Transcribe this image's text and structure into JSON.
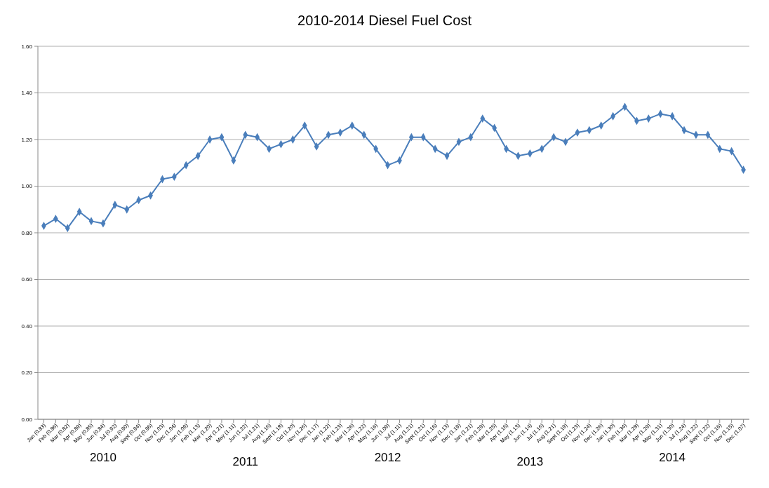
{
  "chart_data": {
    "type": "line",
    "title": "2010-2014 Diesel Fuel Cost",
    "categories": [
      "Jan (0.83)",
      "Feb (0.86)",
      "Mar (0.82)",
      "Apr (0.89)",
      "May (0.85)",
      "Jun (0.84)",
      "Jul (0.92)",
      "Aug (0.90)",
      "Sept (0.94)",
      "Oct (0.96)",
      "Nov (1.03)",
      "Dec (1.04)",
      "Jan (1.09)",
      "Feb (1.13)",
      "Mar (1.20)",
      "Apr (1.21)",
      "May (1.11)",
      "Jun (1.22)",
      "Jul (1.21)",
      "Aug (1.16)",
      "Sept (1.18)",
      "Oct (1.20)",
      "Nov (1.26)",
      "Dec (1.17)",
      "Jan (1.22)",
      "Feb (1.23)",
      "Mar (1.26)",
      "Apr (1.22)",
      "May (1.16)",
      "Jun (1.09)",
      "Jul (1.11)",
      "Aug (1.21)",
      "Sept (1.21)",
      "Oct (1.16)",
      "Nov (1.13)",
      "Dec (1.19)",
      "Jan (1.21)",
      "Feb (1.29)",
      "Mar (1.25)",
      "Apr (1.16)",
      "May (1.13)",
      "Jun (1.14)",
      "Jul (1.16)",
      "Aug (1.21)",
      "Sept (1.19)",
      "Oct (1.23)",
      "Nov (1.24)",
      "Dec (1.26)",
      "Jan (1.30)",
      "Feb (1.34)",
      "Mar (1.28)",
      "Apr (1.29)",
      "May (1.31)",
      "Jun (1.30)",
      "Jul (1.24)",
      "Aug (1.22)",
      "Sept (1.22)",
      "Oct (1.16)",
      "Nov (1.15)",
      "Dec (1.07)"
    ],
    "series": [
      {
        "color": "#4a7ebb",
        "values": [
          0.83,
          0.86,
          0.82,
          0.89,
          0.85,
          0.84,
          0.92,
          0.9,
          0.94,
          0.96,
          1.03,
          1.04,
          1.09,
          1.13,
          1.2,
          1.21,
          1.11,
          1.22,
          1.21,
          1.16,
          1.18,
          1.2,
          1.26,
          1.17,
          1.22,
          1.23,
          1.26,
          1.22,
          1.16,
          1.09,
          1.11,
          1.21,
          1.21,
          1.16,
          1.13,
          1.19,
          1.21,
          1.29,
          1.25,
          1.16,
          1.13,
          1.14,
          1.16,
          1.21,
          1.19,
          1.23,
          1.24,
          1.26,
          1.3,
          1.34,
          1.28,
          1.29,
          1.31,
          1.3,
          1.24,
          1.22,
          1.22,
          1.16,
          1.15,
          1.07
        ]
      }
    ],
    "annotations": [
      "2010",
      "2011",
      "2012",
      "2013",
      "2014"
    ],
    "ylim": [
      0,
      1.6
    ],
    "yticks": [
      {
        "value": 0,
        "label": "0.00"
      },
      {
        "value": 0.2,
        "label": "0.20"
      },
      {
        "value": 0.4,
        "label": "0.40"
      },
      {
        "value": 0.6,
        "label": "0.60"
      },
      {
        "value": 0.8,
        "label": "0.80"
      },
      {
        "value": 1.0,
        "label": "1.00"
      },
      {
        "value": 1.2,
        "label": "1.20"
      },
      {
        "value": 1.4,
        "label": "1.40"
      },
      {
        "value": 1.6,
        "label": "1.60"
      }
    ],
    "grid": "y",
    "marker": "diamond",
    "line_style": "solid"
  }
}
